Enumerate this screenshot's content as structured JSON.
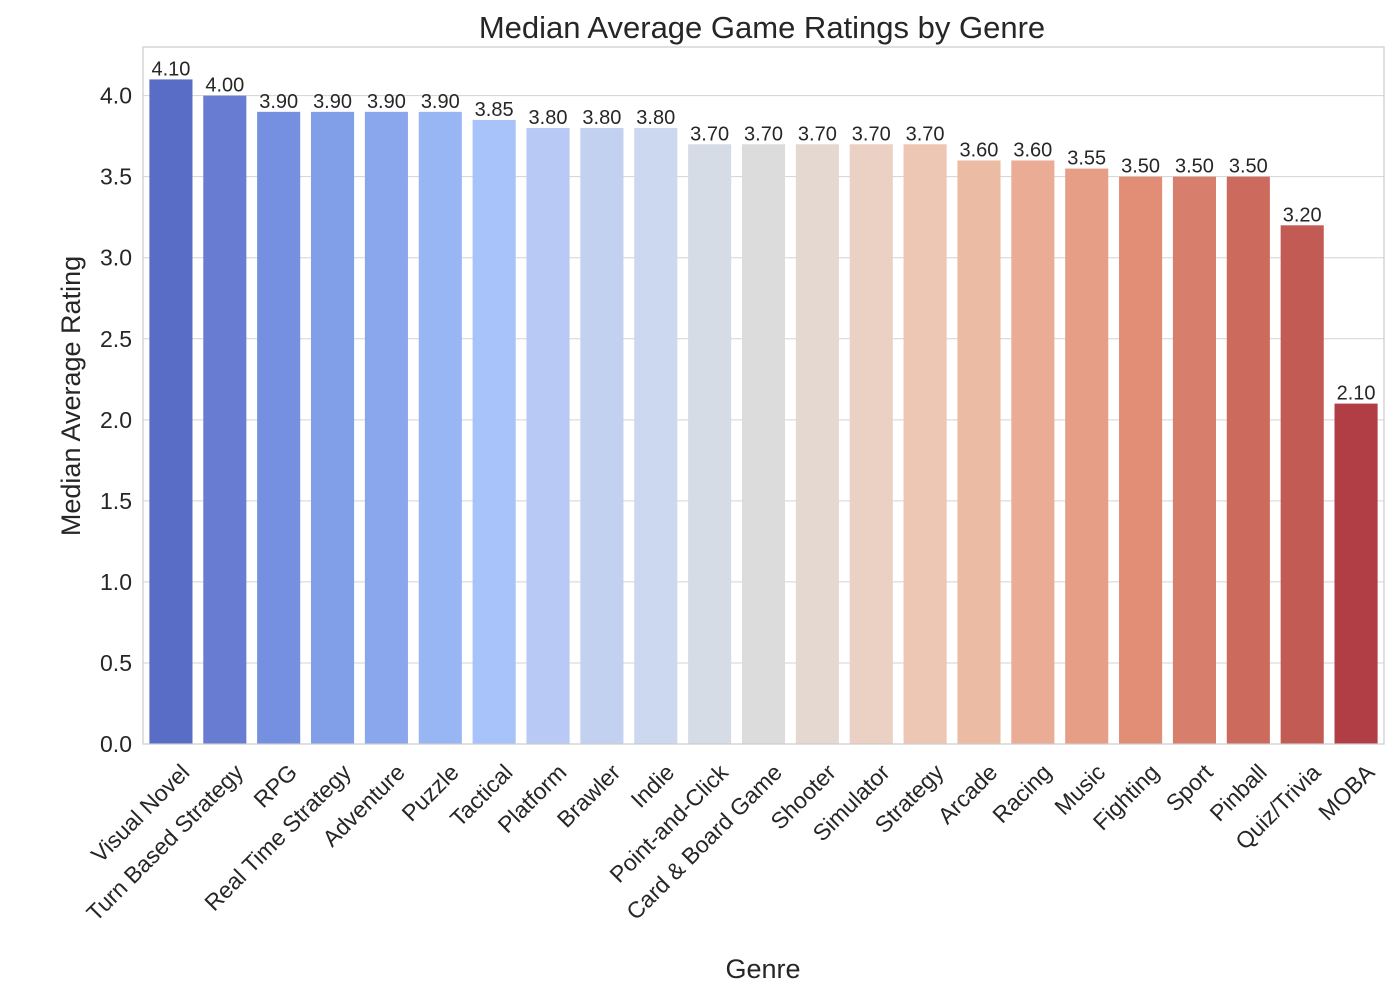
{
  "chart_data": {
    "type": "bar",
    "title": "Median Average Game Ratings by Genre",
    "xlabel": "Genre",
    "ylabel": "Median Average Rating",
    "ylim": [
      0,
      4.3
    ],
    "yticks": [
      "0.0",
      "0.5",
      "1.0",
      "1.5",
      "2.0",
      "2.5",
      "3.0",
      "3.5",
      "4.0"
    ],
    "grid": "horizontal",
    "categories": [
      "Visual Novel",
      "Turn Based Strategy",
      "RPG",
      "Real Time Strategy",
      "Adventure",
      "Puzzle",
      "Tactical",
      "Platform",
      "Brawler",
      "Indie",
      "Point-and-Click",
      "Card & Board Game",
      "Shooter",
      "Simulator",
      "Strategy",
      "Arcade",
      "Racing",
      "Music",
      "Fighting",
      "Sport",
      "Pinball",
      "Quiz/Trivia",
      "MOBA"
    ],
    "values": [
      4.1,
      4.0,
      3.9,
      3.9,
      3.9,
      3.9,
      3.85,
      3.8,
      3.8,
      3.8,
      3.7,
      3.7,
      3.7,
      3.7,
      3.7,
      3.6,
      3.6,
      3.55,
      3.5,
      3.5,
      3.5,
      3.2,
      2.1
    ],
    "value_labels": [
      "4.10",
      "4.00",
      "3.90",
      "3.90",
      "3.90",
      "3.90",
      "3.85",
      "3.80",
      "3.80",
      "3.80",
      "3.70",
      "3.70",
      "3.70",
      "3.70",
      "3.70",
      "3.60",
      "3.60",
      "3.55",
      "3.50",
      "3.50",
      "3.50",
      "3.20",
      "2.10"
    ],
    "colors": [
      "#5a6dc6",
      "#687dd2",
      "#7590e0",
      "#819ee9",
      "#8aa7ed",
      "#98b5f4",
      "#a8c3f9",
      "#b7c9f4",
      "#c1d1ef",
      "#cbd8f0",
      "#d6dce6",
      "#dcdcdc",
      "#e5d8d0",
      "#ebd0c4",
      "#eec7b4",
      "#ecbba4",
      "#eaac94",
      "#e69e86",
      "#e28d76",
      "#d87e6c",
      "#cd6a5e",
      "#c15b54",
      "#b03e44"
    ]
  }
}
